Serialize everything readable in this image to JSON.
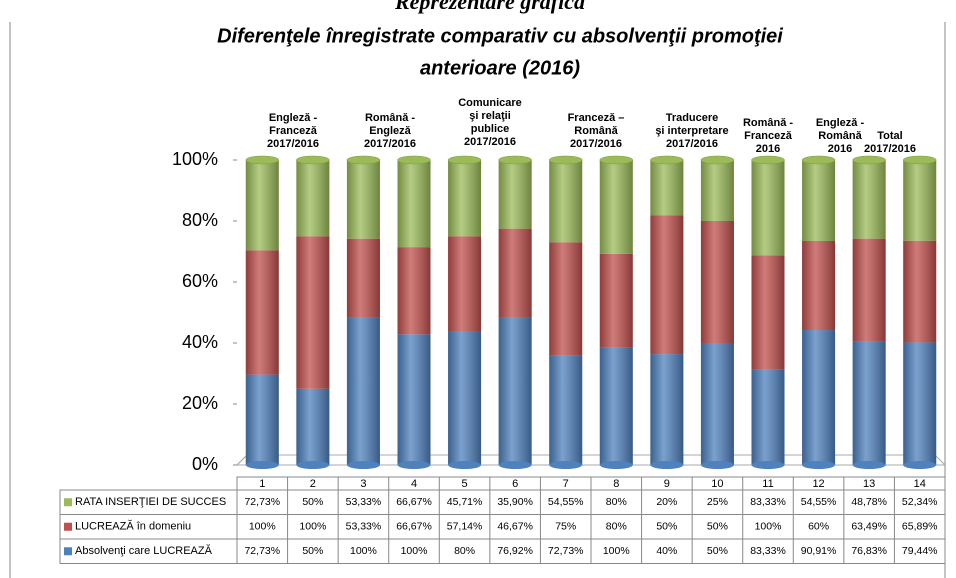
{
  "chart_data": {
    "type": "bar",
    "stacking": "percent",
    "heading": "Reprezentare grafică",
    "title": [
      "Diferenţele înregistrate comparativ cu absolvenţii promoţiei",
      "anterioare (2016)"
    ],
    "categories": [
      "1",
      "2",
      "3",
      "4",
      "5",
      "6",
      "7",
      "8",
      "9",
      "10",
      "11",
      "12",
      "13",
      "14"
    ],
    "group_labels": [
      [
        "Engleză -",
        "Franceză",
        "2017/2016"
      ],
      [
        "Română -",
        "Engleză",
        "2017/2016"
      ],
      [
        "Comunicare",
        "şi relaţii",
        "publice",
        "2017/2016"
      ],
      [
        "Franceză –",
        "Română",
        "2017/2016"
      ],
      [
        "Traducere",
        "şi interpretare",
        "2017/2016"
      ],
      [
        "Română -",
        "Franceză",
        "2016"
      ],
      [
        "Engleză -",
        "Română",
        "2016"
      ],
      [
        "Total",
        "2017/2016"
      ]
    ],
    "series": [
      {
        "name": "Absolvenţi care LUCREAZĂ",
        "color": "#4f81bd",
        "values": [
          72.73,
          50,
          100,
          100,
          80,
          76.92,
          72.73,
          100,
          40,
          50,
          83.33,
          90.91,
          76.83,
          79.44
        ],
        "value_labels": [
          "72,73%",
          "50%",
          "100%",
          "100%",
          "80%",
          "76,92%",
          "72,73%",
          "100%",
          "40%",
          "50%",
          "83,33%",
          "90,91%",
          "76,83%",
          "79,44%"
        ]
      },
      {
        "name": "LUCREAZĂ în  domeniu",
        "color": "#c0504d",
        "values": [
          100,
          100,
          53.33,
          66.67,
          57.14,
          46.67,
          75,
          80,
          50,
          50,
          100,
          60,
          63.49,
          65.89
        ],
        "value_labels": [
          "100%",
          "100%",
          "53,33%",
          "66,67%",
          "57,14%",
          "46,67%",
          "75%",
          "80%",
          "50%",
          "50%",
          "100%",
          "60%",
          "63,49%",
          "65,89%"
        ]
      },
      {
        "name": "RATA INSERŢIEI  DE  SUCCES",
        "color": "#9bbb59",
        "values": [
          72.73,
          50,
          53.33,
          66.67,
          45.71,
          35.9,
          54.55,
          80,
          20,
          25,
          83.33,
          54.55,
          48.78,
          52.34
        ],
        "value_labels": [
          "72,73%",
          "50%",
          "53,33%",
          "66,67%",
          "45,71%",
          "35,90%",
          "54,55%",
          "80%",
          "20%",
          "25%",
          "83,33%",
          "54,55%",
          "48,78%",
          "52,34%"
        ]
      }
    ],
    "ylim": [
      0,
      100
    ],
    "yticks": [
      {
        "value": 0,
        "label": "0%"
      },
      {
        "value": 20,
        "label": "20%"
      },
      {
        "value": 40,
        "label": "40%"
      },
      {
        "value": 60,
        "label": "60%"
      },
      {
        "value": 80,
        "label": "80%"
      },
      {
        "value": 100,
        "label": "100%"
      }
    ]
  }
}
